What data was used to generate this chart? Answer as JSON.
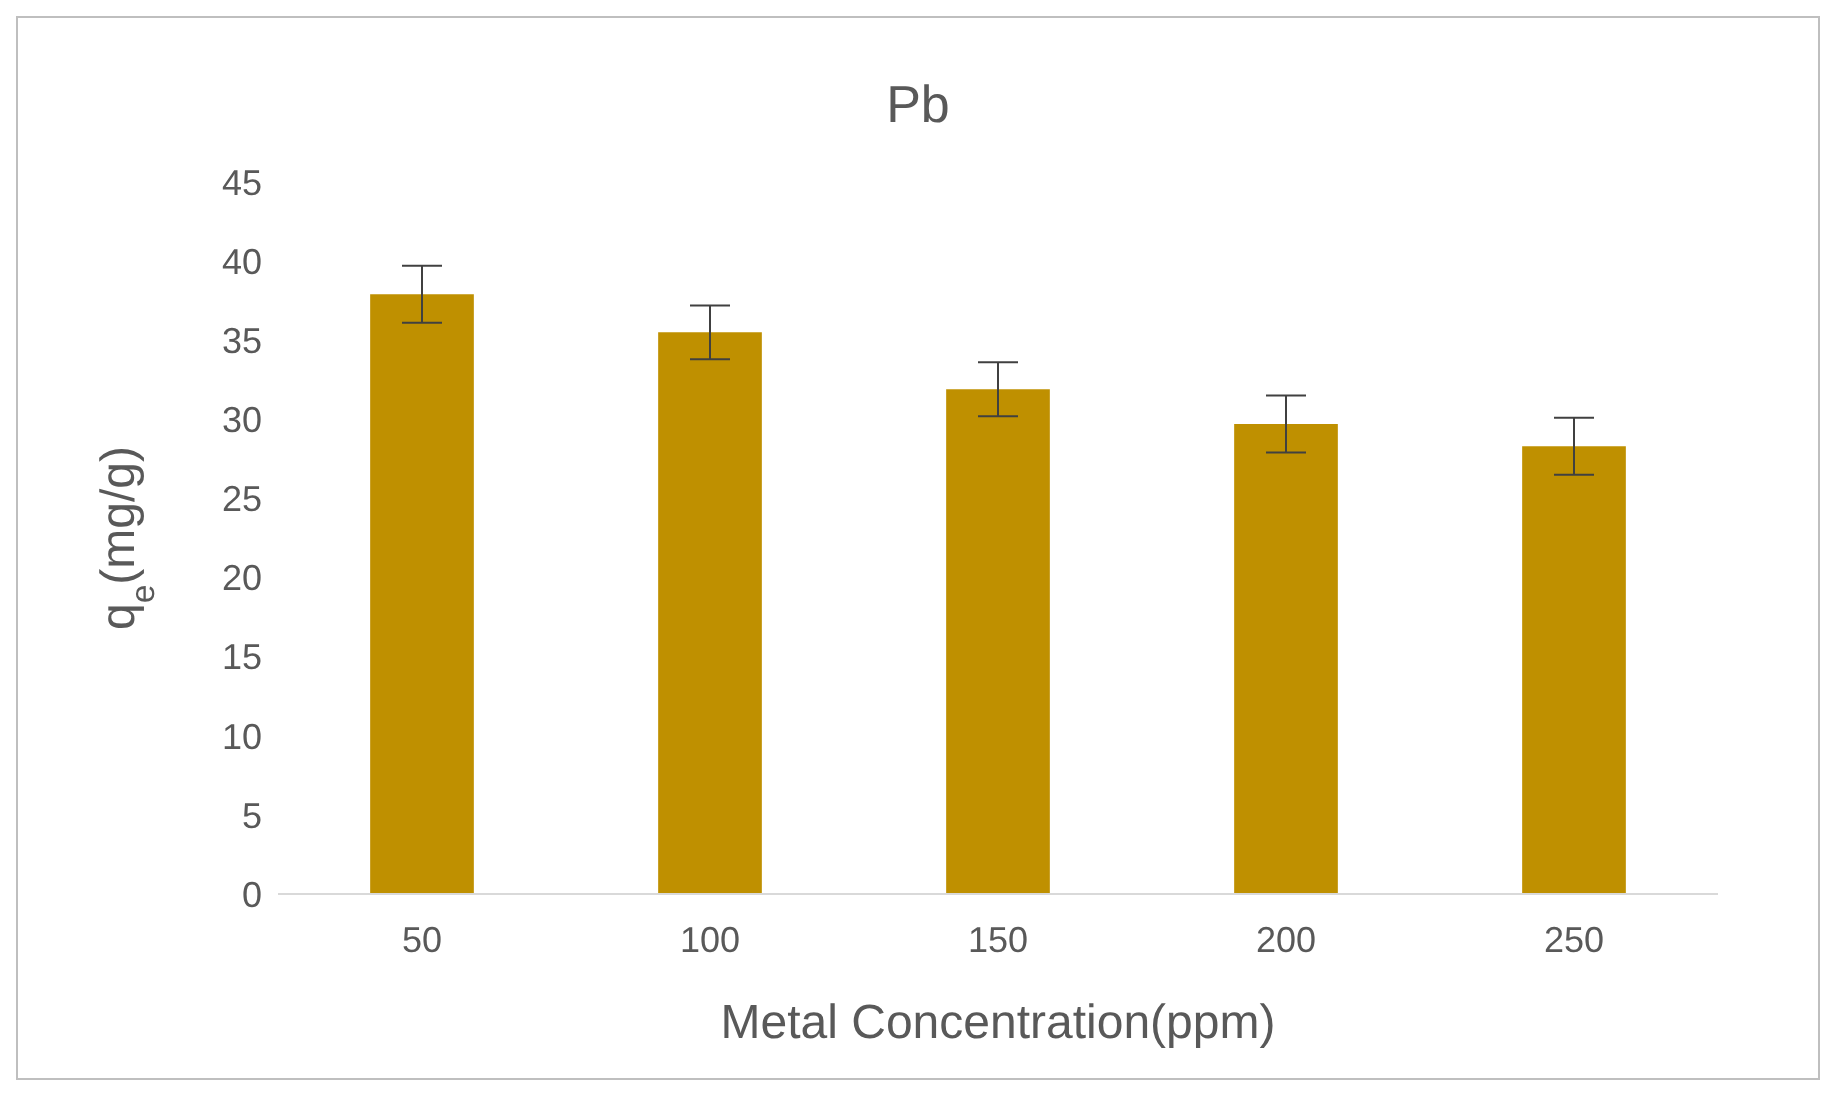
{
  "chart_data": {
    "type": "bar",
    "title": "Pb",
    "xlabel": "Metal Concentration(ppm)",
    "ylabel": "q$_{e}$(mg/g)",
    "categories": [
      "50",
      "100",
      "150",
      "200",
      "250"
    ],
    "series": [
      {
        "color": "#bf9000",
        "values": [
          37.9,
          35.5,
          31.9,
          29.7,
          28.3
        ],
        "errors": [
          1.8,
          1.7,
          1.7,
          1.8,
          1.8
        ]
      }
    ],
    "ylim": [
      0,
      45
    ],
    "yticks": [
      0,
      5,
      10,
      15,
      20,
      25,
      30,
      35,
      40,
      45
    ],
    "grid": false,
    "legend": false
  }
}
